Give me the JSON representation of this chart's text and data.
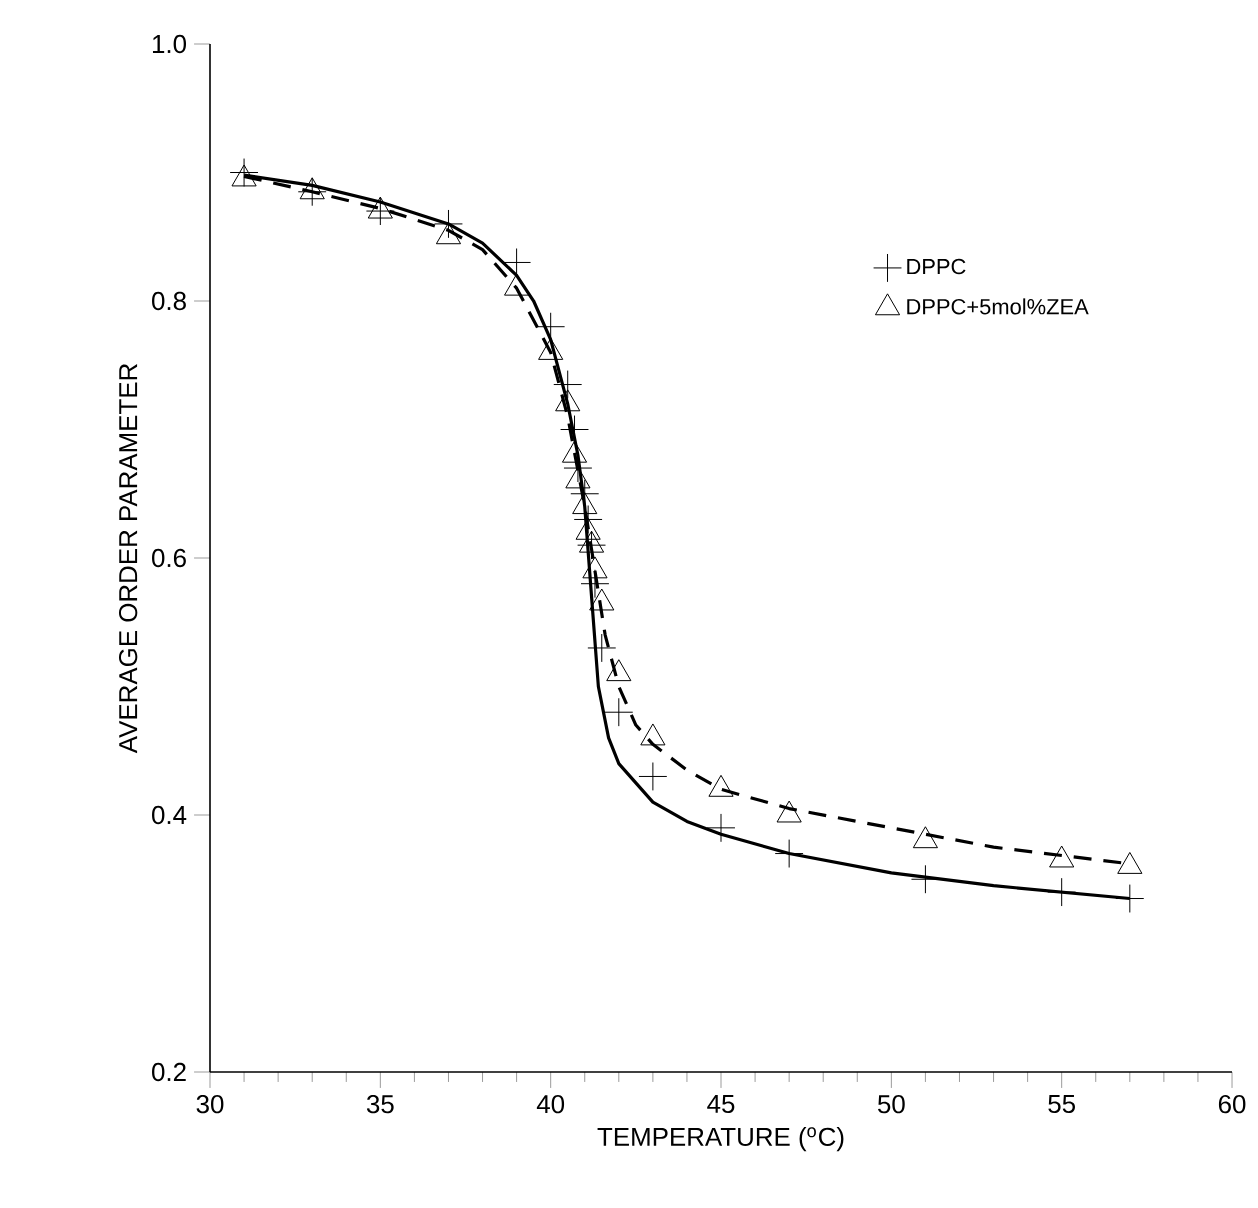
{
  "chart_data": {
    "type": "scatter",
    "xlabel": "TEMPERATURE ($^{o}$C)",
    "ylabel": "AVERAGE ORDER PARAMETER",
    "xlim": [
      30,
      60
    ],
    "ylim": [
      0.2,
      1.0
    ],
    "xticks": [
      30,
      35,
      40,
      45,
      50,
      55,
      60
    ],
    "yticks": [
      0.2,
      0.4,
      0.6,
      0.8,
      {
        "value": 1.0,
        "label": "1.0"
      }
    ],
    "legend": "top right",
    "grid": false,
    "series": [
      {
        "name": "DPPC",
        "marker": "cross",
        "color": "#000000",
        "x": [
          31,
          33,
          35,
          37,
          39,
          40,
          40.5,
          40.7,
          40.8,
          41,
          41.1,
          41.2,
          41.3,
          41.5,
          42,
          43,
          45,
          47,
          51,
          55,
          57
        ],
        "values": [
          0.9,
          0.885,
          0.87,
          0.86,
          0.83,
          0.78,
          0.735,
          0.7,
          0.67,
          0.65,
          0.63,
          0.61,
          0.58,
          0.53,
          0.48,
          0.43,
          0.39,
          0.37,
          0.35,
          0.34,
          0.335
        ]
      },
      {
        "name": "DPPC+5mol%ZEA",
        "marker": "triangle",
        "color": "#000000",
        "x": [
          31,
          33,
          35,
          37,
          39,
          40,
          40.5,
          40.7,
          40.8,
          41,
          41.1,
          41.2,
          41.3,
          41.5,
          42,
          43,
          45,
          47,
          51,
          55,
          57
        ],
        "values": [
          0.895,
          0.885,
          0.87,
          0.85,
          0.81,
          0.76,
          0.72,
          0.68,
          0.66,
          0.64,
          0.62,
          0.61,
          0.59,
          0.565,
          0.51,
          0.46,
          0.42,
          0.4,
          0.38,
          0.365,
          0.36
        ]
      },
      {
        "type": "line",
        "line_style": "solid",
        "marker": "none",
        "color": "#000000",
        "x": [
          31,
          33,
          35,
          37,
          38,
          39,
          39.5,
          40,
          40.5,
          40.8,
          41,
          41.2,
          41.4,
          41.7,
          42,
          43,
          44,
          45,
          47,
          50,
          53,
          57
        ],
        "values": [
          0.898,
          0.89,
          0.877,
          0.86,
          0.845,
          0.82,
          0.8,
          0.77,
          0.72,
          0.68,
          0.64,
          0.57,
          0.5,
          0.46,
          0.44,
          0.41,
          0.395,
          0.385,
          0.37,
          0.355,
          0.345,
          0.335
        ]
      },
      {
        "type": "line",
        "line_style": "dashed",
        "marker": "none",
        "color": "#000000",
        "x": [
          31,
          33,
          35,
          37,
          38,
          39,
          40,
          40.5,
          41,
          41.3,
          41.6,
          42,
          42.5,
          43,
          44,
          45,
          47,
          50,
          53,
          57
        ],
        "values": [
          0.897,
          0.885,
          0.872,
          0.855,
          0.84,
          0.81,
          0.76,
          0.71,
          0.64,
          0.59,
          0.54,
          0.5,
          0.47,
          0.455,
          0.435,
          0.42,
          0.405,
          0.39,
          0.375,
          0.362
        ]
      }
    ]
  }
}
